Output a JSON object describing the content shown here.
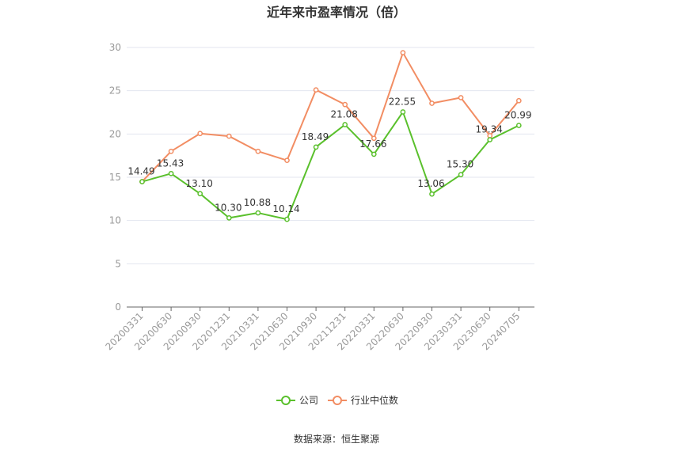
{
  "chart_data": {
    "type": "line",
    "title": "近年来市盈率情况（倍）",
    "categories": [
      "20200331",
      "20200630",
      "20200930",
      "20201231",
      "20210331",
      "20210630",
      "20210930",
      "20211231",
      "20220331",
      "20220630",
      "20220930",
      "20230331",
      "20230630",
      "20240705"
    ],
    "series": [
      {
        "name": "公司",
        "color": "#5ac02c",
        "values": [
          14.49,
          15.43,
          13.1,
          10.3,
          10.88,
          10.14,
          18.49,
          21.08,
          17.66,
          22.55,
          13.06,
          15.3,
          19.34,
          20.99
        ],
        "labels": [
          "14.49",
          "15.43",
          "13.10",
          "10.30",
          "10.88",
          "10.14",
          "18.49",
          "21.08",
          "17.66",
          "22.55",
          "13.06",
          "15.30",
          "19.34",
          "20.99"
        ]
      },
      {
        "name": "行业中位数",
        "color": "#f28d63",
        "values": [
          14.5,
          18.0,
          20.05,
          19.75,
          18.0,
          16.95,
          25.1,
          23.4,
          19.5,
          29.4,
          23.55,
          24.2,
          19.8,
          23.85
        ]
      }
    ],
    "ylim": [
      0,
      30
    ],
    "yticks": [
      "0",
      "5",
      "10",
      "15",
      "20",
      "25",
      "30"
    ],
    "grid": true,
    "legend_position": "bottom"
  },
  "source": "数据来源：恒生聚源"
}
